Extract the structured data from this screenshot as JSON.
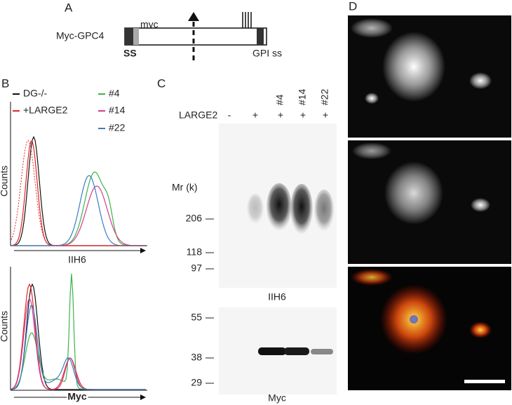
{
  "panels": {
    "a": {
      "label": "A",
      "construct": "Myc-GPC4",
      "tag": "myc",
      "signal": "SS",
      "anchor": "GPI ss"
    },
    "b": {
      "label": "B",
      "legend": [
        {
          "name": "DG-/-",
          "color": "#111111"
        },
        {
          "name": "+LARGE2",
          "color": "#e0262a"
        },
        {
          "name": "#4",
          "color": "#3cb44a"
        },
        {
          "name": "#14",
          "color": "#d63c8e"
        },
        {
          "name": "#22",
          "color": "#3b7cc4"
        }
      ],
      "top": {
        "y_label": "Counts",
        "x_label": "IIH6"
      },
      "bottom": {
        "y_label": "Counts",
        "x_label": "Myc"
      }
    },
    "c": {
      "label": "C",
      "row_label": "LARGE2",
      "lanes": [
        "-",
        "+",
        "+",
        "+",
        "+"
      ],
      "clones": [
        "#4",
        "#14",
        "#22"
      ],
      "mr": "Mr (k)",
      "blot1": {
        "markers": [
          206,
          118,
          97
        ],
        "label": "IIH6"
      },
      "blot2": {
        "markers": [
          55,
          38,
          29
        ],
        "label": "Myc"
      }
    },
    "d": {
      "label": "D"
    }
  }
}
